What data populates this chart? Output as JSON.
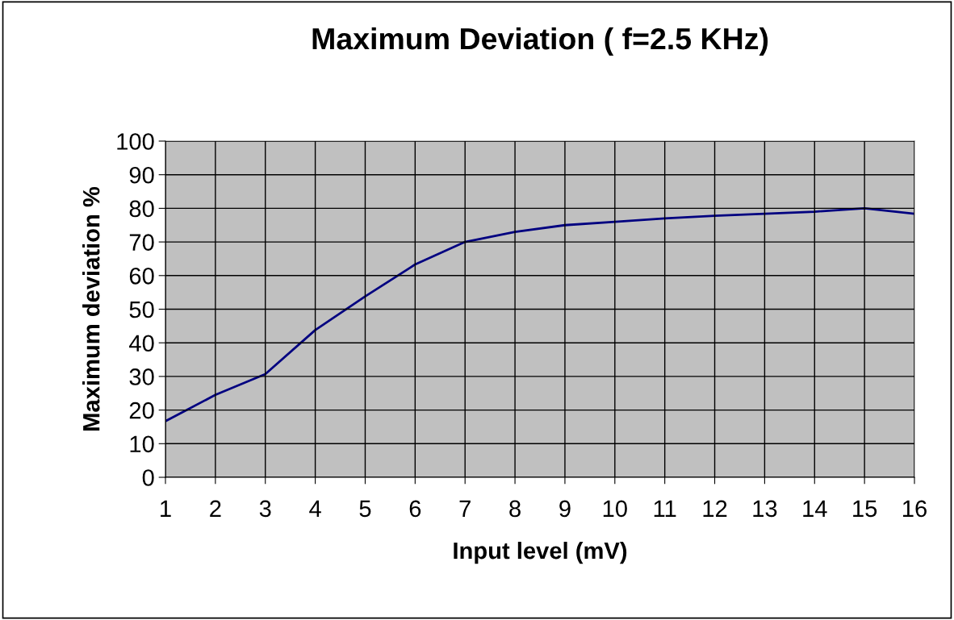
{
  "chart_data": {
    "type": "line",
    "title": "Maximum Deviation ( f=2.5 KHz)",
    "xlabel": "Input level (mV)",
    "ylabel": "Maximum deviation %",
    "x": [
      1,
      2,
      3,
      4,
      5,
      6,
      7,
      8,
      9,
      10,
      11,
      12,
      13,
      14,
      15,
      16
    ],
    "series": [
      {
        "color": "#000080",
        "values": [
          16.7,
          24.5,
          30.7,
          43.8,
          53.8,
          63.3,
          70,
          73,
          75,
          76,
          77,
          77.8,
          78.4,
          79,
          80,
          78.4
        ]
      }
    ],
    "xlim": [
      1,
      16
    ],
    "xticks": [
      1,
      2,
      3,
      4,
      5,
      6,
      7,
      8,
      9,
      10,
      11,
      12,
      13,
      14,
      15,
      16
    ],
    "ylim": [
      0,
      100
    ],
    "yticks": [
      0,
      10,
      20,
      30,
      40,
      50,
      60,
      70,
      80,
      90,
      100
    ],
    "grid": true,
    "marker": "none",
    "line_style": "solid"
  }
}
